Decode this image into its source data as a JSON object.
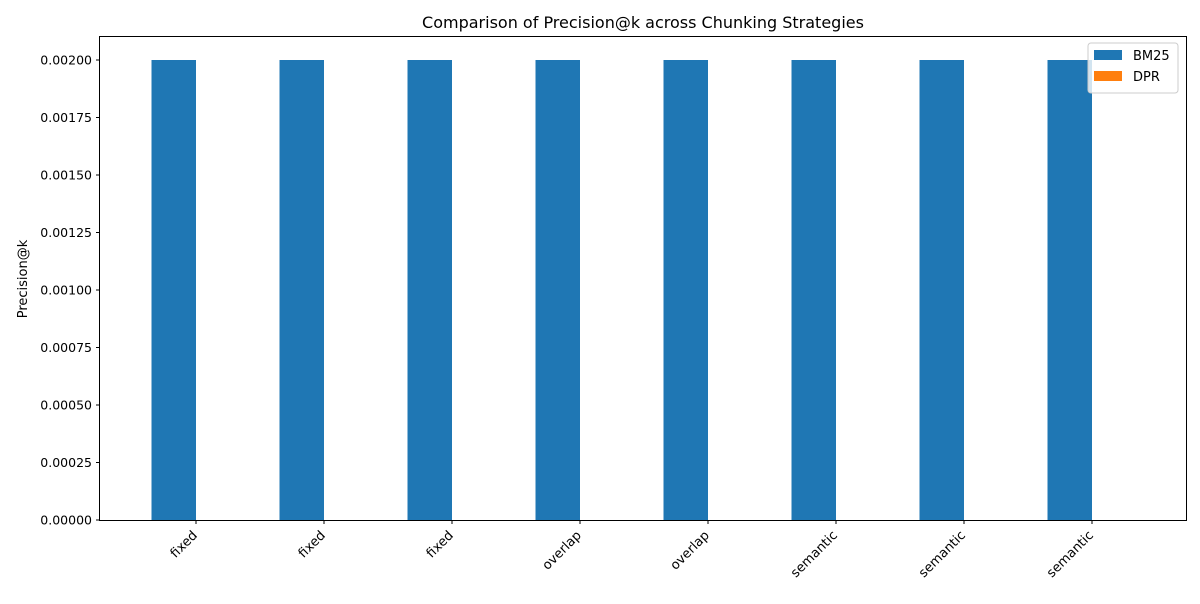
{
  "chart_data": {
    "type": "bar",
    "title": "Comparison of Precision@k across Chunking Strategies",
    "xlabel": "",
    "ylabel": "Precision@k",
    "categories": [
      "fixed",
      "fixed",
      "fixed",
      "overlap",
      "overlap",
      "semantic",
      "semantic",
      "semantic"
    ],
    "series": [
      {
        "name": "BM25",
        "color": "#1f77b4",
        "values": [
          0.002,
          0.002,
          0.002,
          0.002,
          0.002,
          0.002,
          0.002,
          0.002
        ]
      },
      {
        "name": "DPR",
        "color": "#ff7f0e",
        "values": [
          0,
          0,
          0,
          0,
          0,
          0,
          0,
          0
        ]
      }
    ],
    "ylim": [
      0,
      0.0021
    ],
    "yticks": [
      "0.00000",
      "0.00025",
      "0.00050",
      "0.00075",
      "0.00100",
      "0.00125",
      "0.00150",
      "0.00175",
      "0.00200"
    ],
    "grid": false,
    "legend_position": "top-right"
  }
}
